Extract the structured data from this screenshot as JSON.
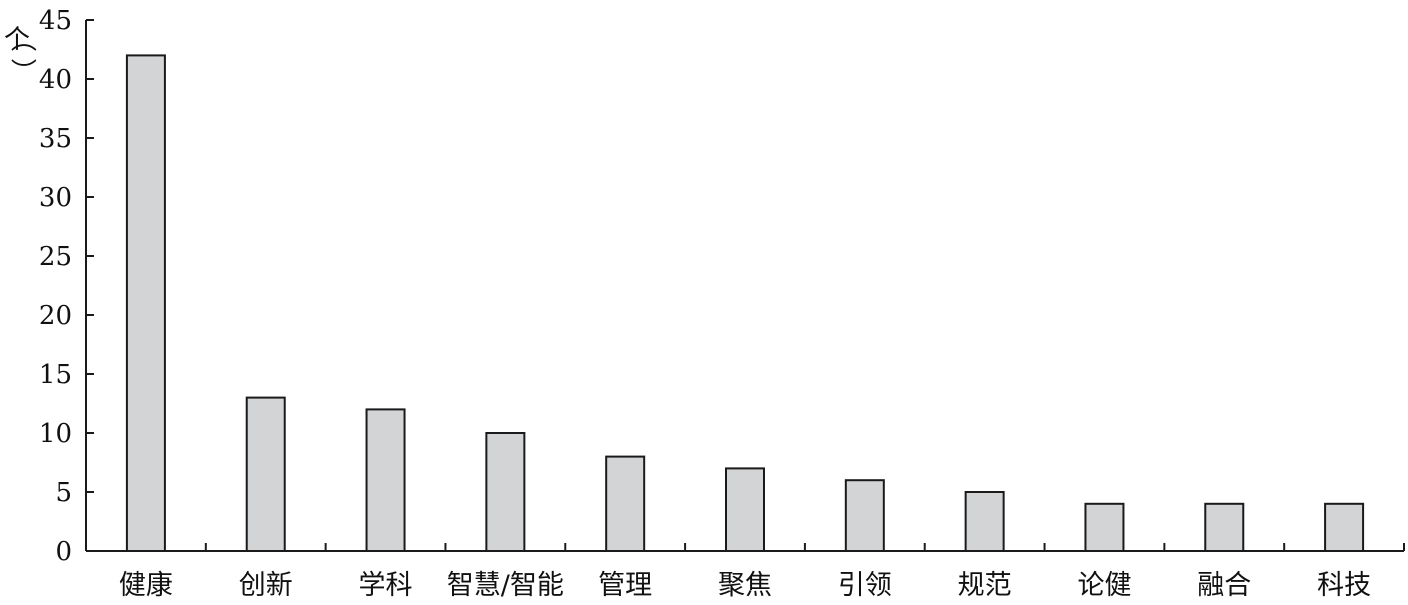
{
  "chart_data": {
    "type": "bar",
    "title": "",
    "xlabel": "",
    "ylabel": "（个）",
    "ylim": [
      0,
      45
    ],
    "yticks": [
      0,
      5,
      10,
      15,
      20,
      25,
      30,
      35,
      40,
      45
    ],
    "grid": false,
    "categories": [
      "健康",
      "创新",
      "学科",
      "智慧/智能",
      "管理",
      "聚焦",
      "引领",
      "规范",
      "论健",
      "融合",
      "科技"
    ],
    "values": [
      42,
      13,
      12,
      10,
      8,
      7,
      6,
      5,
      4,
      4,
      4
    ],
    "colors": {
      "bar_fill": "#d3d4d6",
      "bar_stroke": "#1a1a1a",
      "axis": "#1a1a1a"
    }
  }
}
